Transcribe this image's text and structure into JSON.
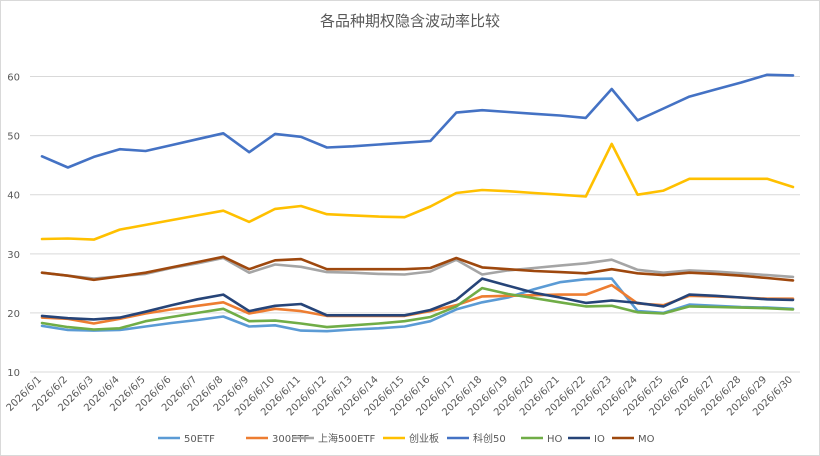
{
  "chart_data": {
    "type": "line",
    "title": "各品种期权隐含波动率比较",
    "xlabel": "",
    "ylabel": "",
    "ylim": [
      10,
      65
    ],
    "yticks": [
      10,
      20,
      30,
      40,
      50,
      60
    ],
    "grid": true,
    "legend_position": "bottom",
    "categories": [
      "2026/6/1",
      "2026/6/2",
      "2026/6/3",
      "2026/6/4",
      "2026/6/5",
      "2026/6/6",
      "2026/6/7",
      "2026/6/8",
      "2026/6/9",
      "2026/6/10",
      "2026/6/11",
      "2026/6/12",
      "2026/6/13",
      "2026/6/14",
      "2026/6/15",
      "2026/6/16",
      "2026/6/17",
      "2026/6/18",
      "2026/6/19",
      "2026/6/20",
      "2026/6/21",
      "2026/6/22",
      "2026/6/23",
      "2026/6/24",
      "2026/6/25",
      "2026/6/26",
      "2026/6/27",
      "2026/6/28",
      "2026/6/29",
      "2026/6/30"
    ],
    "series": [
      {
        "name": "50ETF",
        "color": "#5b9bd5",
        "values": [
          17.8,
          17.1,
          17.0,
          17.1,
          17.7,
          18.3,
          18.8,
          19.4,
          17.7,
          17.9,
          17.0,
          16.9,
          17.2,
          17.4,
          17.7,
          18.6,
          20.6,
          21.8,
          22.6,
          24.0,
          25.2,
          25.7,
          25.8,
          20.3,
          20.0,
          21.4,
          21.2,
          21.0,
          20.9,
          20.7
        ]
      },
      {
        "name": "300ETF",
        "color": "#ed7d31",
        "values": [
          19.2,
          19.0,
          18.2,
          19.0,
          19.9,
          20.6,
          21.2,
          21.8,
          19.9,
          20.7,
          20.3,
          19.5,
          19.5,
          19.5,
          19.5,
          20.3,
          21.3,
          22.8,
          22.9,
          23.0,
          23.1,
          23.1,
          24.7,
          21.6,
          21.3,
          22.9,
          22.8,
          22.6,
          22.4,
          22.4
        ]
      },
      {
        "name": "上海500ETF",
        "color": "#a5a5a5",
        "values": [
          26.8,
          26.3,
          25.8,
          26.2,
          26.6,
          27.6,
          28.4,
          29.3,
          26.8,
          28.2,
          27.8,
          26.9,
          26.8,
          26.6,
          26.5,
          27.0,
          29.0,
          26.5,
          27.2,
          27.6,
          28.0,
          28.4,
          29.0,
          27.3,
          26.8,
          27.2,
          27.0,
          26.7,
          26.4,
          26.1
        ]
      },
      {
        "name": "创业板",
        "color": "#ffc000",
        "values": [
          32.5,
          32.6,
          32.4,
          34.1,
          34.9,
          35.7,
          36.5,
          37.3,
          35.4,
          37.6,
          38.1,
          36.7,
          36.5,
          36.3,
          36.2,
          38.0,
          40.3,
          40.8,
          40.6,
          40.3,
          40.0,
          39.7,
          48.6,
          40.0,
          40.7,
          42.7,
          42.7,
          42.7,
          42.7,
          41.3
        ]
      },
      {
        "name": "科创50",
        "color": "#4472c4",
        "values": [
          46.5,
          44.6,
          46.4,
          47.7,
          47.4,
          48.4,
          49.4,
          50.4,
          47.2,
          50.3,
          49.8,
          48.0,
          48.2,
          48.5,
          48.8,
          49.1,
          53.9,
          54.3,
          54.0,
          53.7,
          53.4,
          53.0,
          57.9,
          52.6,
          54.6,
          56.6,
          57.8,
          59.0,
          60.3,
          60.2
        ]
      },
      {
        "name": "HO",
        "color": "#70ad47",
        "values": [
          18.3,
          17.6,
          17.2,
          17.4,
          18.6,
          19.3,
          20.0,
          20.7,
          18.6,
          18.7,
          18.2,
          17.6,
          17.9,
          18.2,
          18.6,
          19.3,
          21.1,
          24.2,
          23.2,
          22.5,
          21.8,
          21.1,
          21.2,
          20.1,
          19.9,
          21.1,
          21.0,
          20.9,
          20.8,
          20.6
        ]
      },
      {
        "name": "IO",
        "color": "#264478",
        "values": [
          19.5,
          19.1,
          18.9,
          19.2,
          20.2,
          21.3,
          22.3,
          23.1,
          20.3,
          21.2,
          21.5,
          19.6,
          19.6,
          19.6,
          19.6,
          20.5,
          22.2,
          25.8,
          24.6,
          23.4,
          22.6,
          21.7,
          22.1,
          21.7,
          21.1,
          23.1,
          22.9,
          22.6,
          22.3,
          22.2
        ]
      },
      {
        "name": "MO",
        "color": "#9e480e",
        "values": [
          26.8,
          26.3,
          25.6,
          26.2,
          26.8,
          27.7,
          28.6,
          29.5,
          27.4,
          28.9,
          29.1,
          27.4,
          27.4,
          27.4,
          27.4,
          27.6,
          29.3,
          27.7,
          27.4,
          27.1,
          26.9,
          26.7,
          27.4,
          26.7,
          26.4,
          26.8,
          26.6,
          26.3,
          25.9,
          25.5
        ]
      }
    ]
  }
}
